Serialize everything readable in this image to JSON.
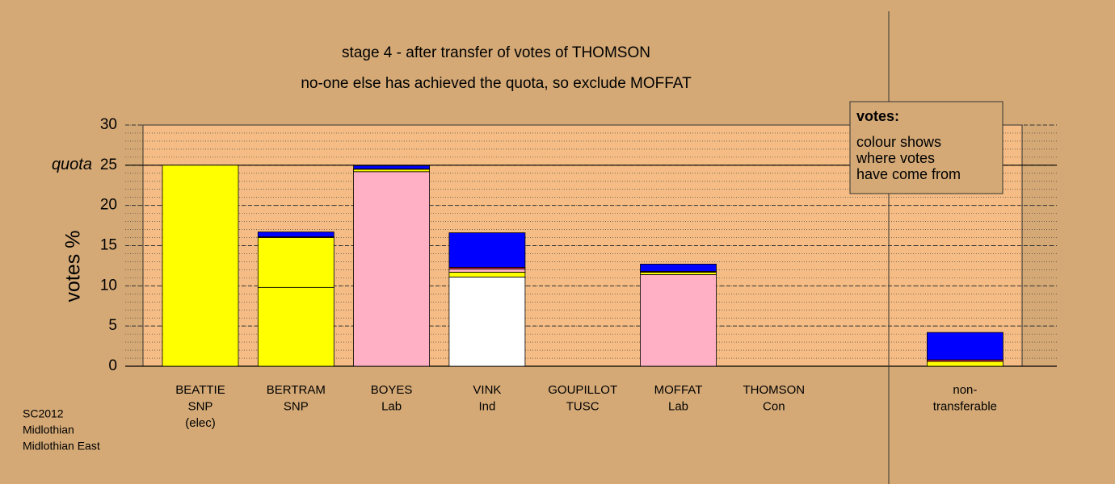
{
  "chart_data": {
    "type": "stacked-bar",
    "title": "stage 4 - after transfer of votes of THOMSON",
    "subtitle": "no-one else has achieved the quota, so exclude MOFFAT",
    "y_label": "votes %",
    "quota_label": "quota",
    "quota": 25,
    "categories": [
      [
        "BEATTIE",
        "SNP",
        "(elec)"
      ],
      [
        "BERTRAM",
        "SNP"
      ],
      [
        "BOYES",
        "Lab"
      ],
      [
        "VINK",
        "Ind"
      ],
      [
        "GOUPILLOT",
        "TUSC"
      ],
      [
        "MOFFAT",
        "Lab"
      ],
      [
        "THOMSON",
        "Con"
      ],
      [
        "non-",
        "transferable"
      ]
    ],
    "series": [
      {
        "color": "#ffff00",
        "values": [
          25,
          9.8,
          0,
          0,
          0,
          0,
          0,
          0
        ]
      },
      {
        "color": "#ffb0c4",
        "values": [
          0,
          0,
          24.2,
          0,
          0,
          11.4,
          0,
          0
        ]
      },
      {
        "color": "#ffffff",
        "values": [
          0,
          0,
          0,
          11.1,
          0,
          0,
          0,
          0
        ]
      },
      {
        "color": "#ffff00",
        "values": [
          0,
          6.2,
          0.3,
          0.6,
          0,
          0.3,
          0,
          0.6
        ]
      },
      {
        "color": "#ffb0c4",
        "values": [
          0,
          0,
          0,
          0.4,
          0,
          0,
          0,
          0
        ]
      },
      {
        "color": "#e0204a",
        "values": [
          0,
          0.1,
          0.05,
          0.2,
          0,
          0.1,
          0,
          0.2
        ]
      },
      {
        "color": "#0000ff",
        "values": [
          0,
          0.6,
          0.4,
          4.3,
          0,
          0.9,
          0,
          3.4
        ]
      }
    ],
    "ylim": [
      0,
      30
    ],
    "yticks": [
      0,
      5,
      10,
      15,
      20,
      25,
      30
    ],
    "grid": true,
    "legend": {
      "title": "votes:",
      "lines": [
        "colour shows",
        "where votes",
        "have come from"
      ]
    },
    "footnote": [
      "SC2012",
      "Midlothian",
      "Midlothian East"
    ]
  }
}
